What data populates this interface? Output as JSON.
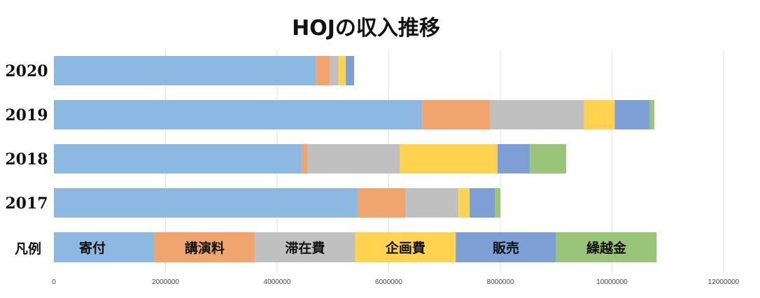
{
  "chart_data": {
    "type": "bar",
    "orientation": "horizontal",
    "stacked": true,
    "title": "HOJの収入推移",
    "categories": [
      "2020",
      "2019",
      "2018",
      "2017"
    ],
    "series": [
      {
        "name": "寄付",
        "color": "#8db8e2",
        "values": [
          4700000,
          6600000,
          4450000,
          5450000
        ]
      },
      {
        "name": "講演料",
        "color": "#f0a56e",
        "values": [
          250000,
          1220000,
          100000,
          850000
        ]
      },
      {
        "name": "滞在費",
        "color": "#c0c0c0",
        "values": [
          150000,
          1680000,
          1650000,
          950000
        ]
      },
      {
        "name": "企画費",
        "color": "#ffd24f",
        "values": [
          130000,
          550000,
          1750000,
          200000
        ]
      },
      {
        "name": "販売",
        "color": "#7d9fd6",
        "values": [
          150000,
          630000,
          580000,
          450000
        ]
      },
      {
        "name": "繰越金",
        "color": "#9ac47a",
        "values": [
          0,
          80000,
          650000,
          100000
        ]
      }
    ],
    "legend_caption": "凡例",
    "legend_values": [
      1800000,
      1800000,
      1800000,
      1800000,
      1800000,
      1800000
    ],
    "xlim": [
      0,
      12000000
    ],
    "x_ticks": [
      "0",
      "2000000",
      "4000000",
      "6000000",
      "8000000",
      "10000000",
      "12000000"
    ],
    "x_tick_values": [
      0,
      2000000,
      4000000,
      6000000,
      8000000,
      10000000,
      12000000
    ],
    "grid": true,
    "legend_position": "bottom"
  }
}
